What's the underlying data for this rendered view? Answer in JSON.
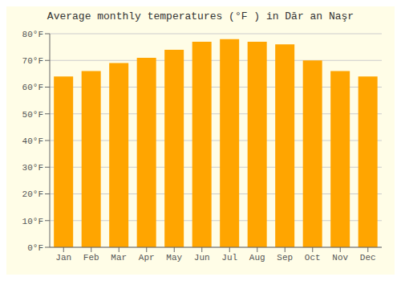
{
  "chart_data": {
    "type": "bar",
    "title": "Average monthly temperatures (°F ) in Dār an Naşr",
    "categories": [
      "Jan",
      "Feb",
      "Mar",
      "Apr",
      "May",
      "Jun",
      "Jul",
      "Aug",
      "Sep",
      "Oct",
      "Nov",
      "Dec"
    ],
    "values": [
      64,
      66,
      69,
      71,
      74,
      77,
      78,
      77,
      76,
      70,
      66,
      64
    ],
    "color": "#FFA500",
    "ylim": [
      0,
      80
    ],
    "yticks": [
      {
        "value": 0,
        "label": "0°F"
      },
      {
        "value": 10,
        "label": "10°F"
      },
      {
        "value": 20,
        "label": "20°F"
      },
      {
        "value": 30,
        "label": "30°F"
      },
      {
        "value": 40,
        "label": "40°F"
      },
      {
        "value": 50,
        "label": "50°F"
      },
      {
        "value": 60,
        "label": "60°F"
      },
      {
        "value": 70,
        "label": "70°F"
      },
      {
        "value": 80,
        "label": "80°F"
      }
    ],
    "grid": true
  }
}
